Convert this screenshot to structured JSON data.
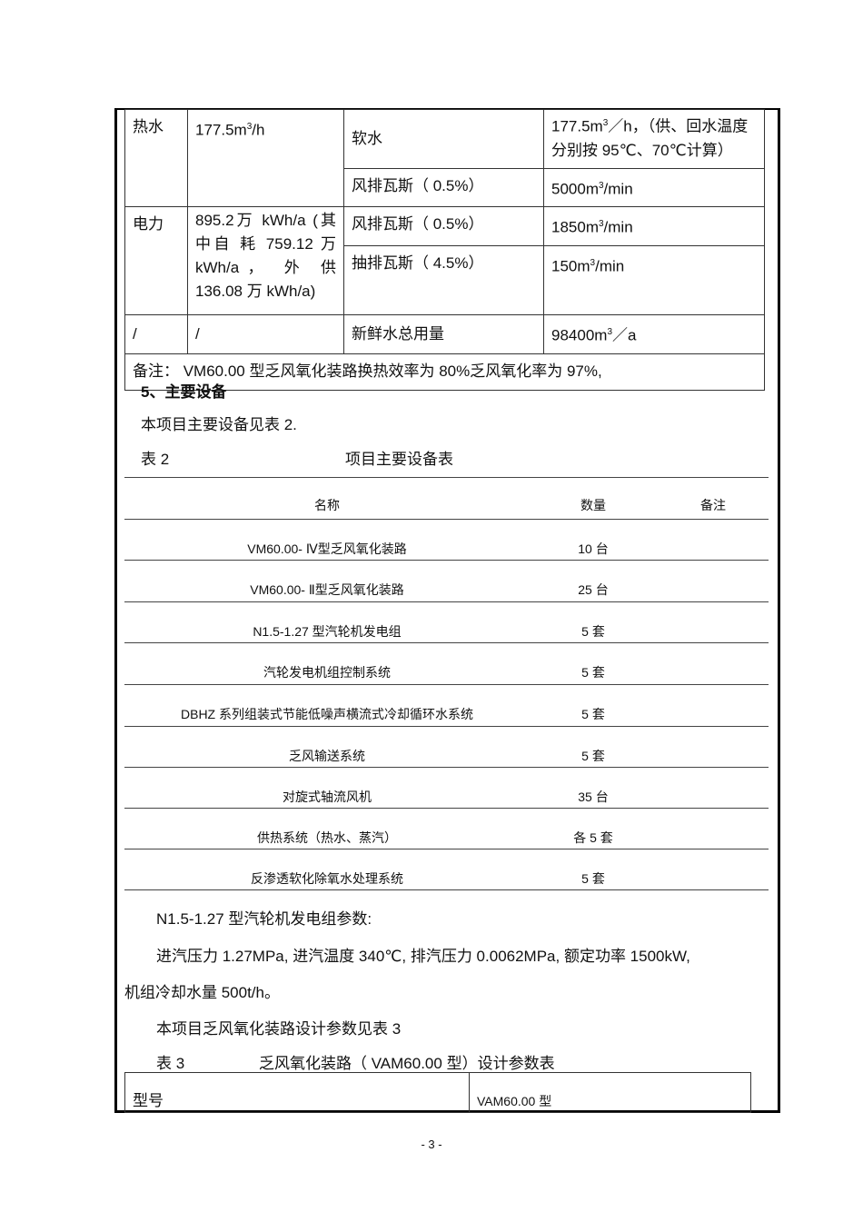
{
  "table1": {
    "rows": [
      {
        "c1": "热水",
        "c2": "177.5m",
        "c2sup": "3",
        "c2tail": "/h",
        "c3": "软水",
        "c4a": "177.5m",
        "c4sup": "3",
        "c4b": "／h，（供、回水温度分别按 95℃、70℃计算）"
      },
      {
        "c3": "风排瓦斯（ 0.5%）",
        "c4a": "5000m",
        "c4sup": "3",
        "c4b": "/min"
      },
      {
        "c1": "电力",
        "c2": "895.2万 kWh/a (其中自 耗 759.12 万 kWh/a， 外 供 136.08 万 kWh/a)",
        "c3": "风排瓦斯（ 0.5%）",
        "c4a": "1850m",
        "c4sup": "3",
        "c4b": "/min"
      },
      {
        "c3": "抽排瓦斯（ 4.5%）",
        "c4a": "150m",
        "c4sup": "3",
        "c4b": "/min"
      },
      {
        "c1": "/",
        "c2": "/",
        "c3": "新鲜水总用量",
        "c4a": "98400m",
        "c4sup": "3",
        "c4b": "／a"
      }
    ],
    "note": "备注： VM60.00 型乏风氧化装路换热效率为  80%乏风氧化率为  97%,"
  },
  "section5": {
    "heading": "5、主要设备",
    "intro": "本项目主要设备见表  2.",
    "table_label": "表 2",
    "table_title": "项目主要设备表"
  },
  "table2": {
    "headers": [
      "名称",
      "数量",
      "备注"
    ],
    "rows": [
      [
        "VM60.00- Ⅳ型乏风氧化装路",
        "10 台"
      ],
      [
        "VM60.00- Ⅱ型乏风氧化装路",
        "25 台"
      ],
      [
        "N1.5-1.27  型汽轮机发电组",
        "5 套"
      ],
      [
        "汽轮发电机组控制系统",
        "5 套"
      ],
      [
        "DBHZ  系列组装式节能低噪声横流式冷却循环水系统",
        "5 套"
      ],
      [
        "乏风输送系统",
        "5 套"
      ],
      [
        "对旋式轴流风机",
        "35 台"
      ],
      [
        "供热系统（热水、蒸汽）",
        "各 5 套"
      ],
      [
        "反渗透软化除氧水处理系统",
        "5 套"
      ]
    ]
  },
  "params": {
    "title": "N1.5-1.27 型汽轮机发电组参数:",
    "line1": "进汽压力  1.27MPa,  进汽温度  340℃,  排汽压力  0.0062MPa,  额定功率  1500kW,",
    "line2": "机组冷却水量  500t/h。",
    "intro3": "本项目乏风氧化装路设计参数见表    3",
    "table3_label": "表 3",
    "table3_title": "乏风氧化装路（  VAM60.00  型）设计参数表"
  },
  "table3": {
    "c1": "型号",
    "c2": "VAM60.00   型"
  },
  "page_number": "- 3 -"
}
